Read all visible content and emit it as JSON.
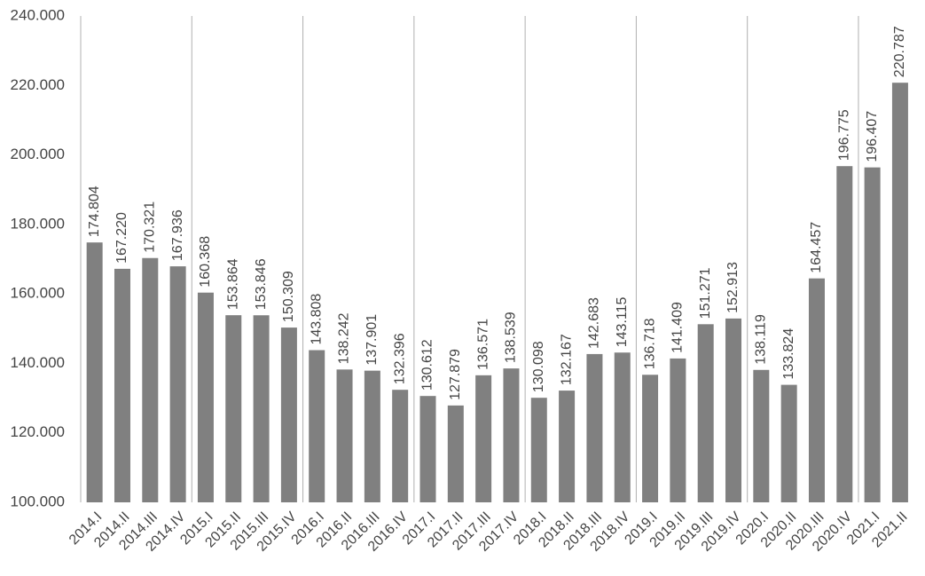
{
  "chart_data": {
    "type": "bar",
    "categories": [
      "2014.I",
      "2014.II",
      "2014.III",
      "2014.IV",
      "2015.I",
      "2015.II",
      "2015.III",
      "2015.IV",
      "2016.I",
      "2016.II",
      "2016.III",
      "2016.IV",
      "2017.I",
      "2017.II",
      "2017.III",
      "2017.IV",
      "2018.I",
      "2018.II",
      "2018.III",
      "2018.IV",
      "2019.I",
      "2019.II",
      "2019.III",
      "2019.IV",
      "2020.I",
      "2020.II",
      "2020.III",
      "2020.IV",
      "2021.I",
      "2021.II"
    ],
    "values": [
      174804,
      167220,
      170321,
      167936,
      160368,
      153864,
      153846,
      150309,
      143808,
      138242,
      137901,
      132396,
      130612,
      127879,
      136571,
      138539,
      130098,
      132167,
      142683,
      143115,
      136718,
      141409,
      151271,
      152913,
      138119,
      133824,
      164457,
      196775,
      196407,
      220787
    ],
    "value_labels": [
      "174.804",
      "167.220",
      "170.321",
      "167.936",
      "160.368",
      "153.864",
      "153.846",
      "150.309",
      "143.808",
      "138.242",
      "137.901",
      "132.396",
      "130.612",
      "127.879",
      "136.571",
      "138.539",
      "130.098",
      "132.167",
      "142.683",
      "143.115",
      "136.718",
      "141.409",
      "151.271",
      "152.913",
      "138.119",
      "133.824",
      "164.457",
      "196.775",
      "196.407",
      "220.787"
    ],
    "color": "#808080",
    "ylim": [
      100000,
      240000
    ],
    "yticks": [
      {
        "value": 100000,
        "label": "100.000"
      },
      {
        "value": 120000,
        "label": "120.000"
      },
      {
        "value": 140000,
        "label": "140.000"
      },
      {
        "value": 160000,
        "label": "160.000"
      },
      {
        "value": 180000,
        "label": "180.000"
      },
      {
        "value": 200000,
        "label": "200.000"
      },
      {
        "value": 220000,
        "label": "220.000"
      },
      {
        "value": 240000,
        "label": "240.000"
      }
    ],
    "grid": false
  }
}
